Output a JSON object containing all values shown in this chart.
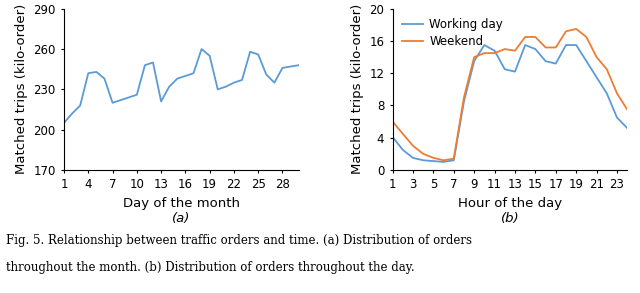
{
  "left_x": [
    1,
    2,
    3,
    4,
    5,
    6,
    7,
    8,
    9,
    10,
    11,
    12,
    13,
    14,
    15,
    16,
    17,
    18,
    19,
    20,
    21,
    22,
    23,
    24,
    25,
    26,
    27,
    28,
    29,
    30
  ],
  "left_y": [
    205,
    212,
    218,
    242,
    243,
    238,
    220,
    222,
    224,
    226,
    248,
    250,
    221,
    232,
    238,
    240,
    242,
    260,
    255,
    230,
    232,
    235,
    237,
    258,
    256,
    241,
    235,
    246,
    247,
    248
  ],
  "left_ylim": [
    170,
    290
  ],
  "left_yticks": [
    170,
    200,
    230,
    260,
    290
  ],
  "left_xticks": [
    1,
    4,
    7,
    10,
    13,
    16,
    19,
    22,
    25,
    28
  ],
  "left_xlabel": "Day of the month",
  "left_ylabel": "Matched trips (kilo-order)",
  "left_label": "(a)",
  "left_color": "#5b9bd5",
  "right_x": [
    1,
    2,
    3,
    4,
    5,
    6,
    7,
    8,
    9,
    10,
    11,
    12,
    13,
    14,
    15,
    16,
    17,
    18,
    19,
    20,
    21,
    22,
    23,
    24
  ],
  "right_y_work": [
    4.1,
    2.5,
    1.5,
    1.2,
    1.1,
    1.0,
    1.2,
    8.5,
    13.5,
    15.5,
    14.8,
    12.5,
    12.2,
    15.5,
    15.0,
    13.5,
    13.2,
    15.5,
    15.5,
    13.5,
    11.5,
    9.5,
    6.5,
    5.2
  ],
  "right_y_weekend": [
    6.0,
    4.5,
    3.0,
    2.0,
    1.5,
    1.2,
    1.4,
    9.0,
    14.0,
    14.5,
    14.5,
    15.0,
    14.8,
    16.5,
    16.5,
    15.2,
    15.2,
    17.2,
    17.5,
    16.5,
    14.0,
    12.5,
    9.5,
    7.5
  ],
  "right_ylim": [
    0,
    20
  ],
  "right_yticks": [
    0,
    4,
    8,
    12,
    16,
    20
  ],
  "right_xticks": [
    1,
    3,
    5,
    7,
    9,
    11,
    13,
    15,
    17,
    19,
    21,
    23
  ],
  "right_xlabel": "Hour of the day",
  "right_ylabel": "Matched trips (kilo-order)",
  "right_label": "(b)",
  "work_color": "#5b9bd5",
  "weekend_color": "#ed7d31",
  "work_legend": "Working day",
  "weekend_legend": "Weekend",
  "fig_caption_line1": "Fig. 5. Relationship between traffic orders and time. (a) Distribution of orders",
  "fig_caption_line2": "throughout the month. (b) Distribution of orders throughout the day.",
  "caption_fontsize": 8.5,
  "axis_label_fontsize": 9.5,
  "tick_fontsize": 8.5,
  "legend_fontsize": 8.5,
  "sublabel_fontsize": 9.5
}
